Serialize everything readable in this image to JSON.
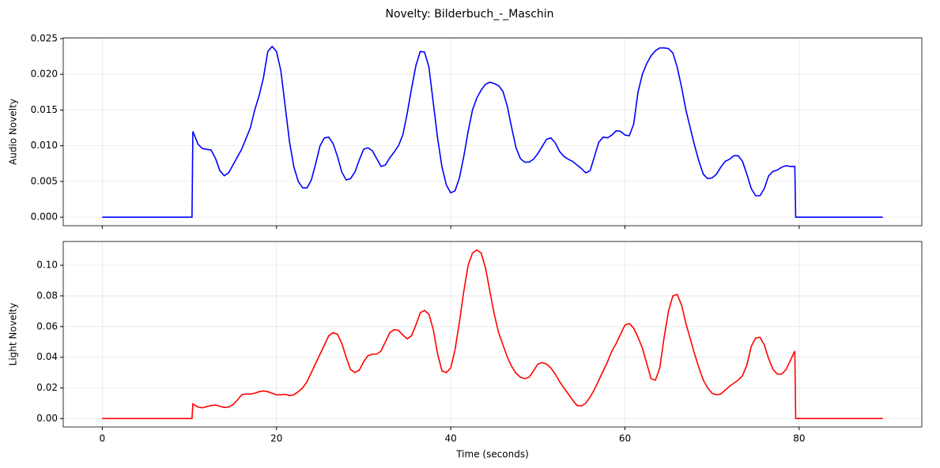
{
  "title": "Novelty: Bilderbuch_-_Maschin",
  "chart_data": [
    {
      "type": "line",
      "ylabel": "Audio Novelty",
      "color": "#0000ff",
      "grid": true,
      "xlim": [
        -4.48,
        94.08
      ],
      "ylim": [
        -0.0012,
        0.0251
      ],
      "xticks": [
        0,
        20,
        40,
        60,
        80
      ],
      "yticks": [
        {
          "value": 0,
          "label": "0.000"
        },
        {
          "value": 0.005,
          "label": "0.005"
        },
        {
          "value": 0.01,
          "label": "0.010"
        },
        {
          "value": 0.015,
          "label": "0.015"
        },
        {
          "value": 0.02,
          "label": "0.020"
        },
        {
          "value": 0.025,
          "label": "0.025"
        }
      ],
      "x": [
        0,
        10.3,
        10.4,
        11,
        11.5,
        12,
        12.5,
        13,
        13.5,
        14,
        14.5,
        15,
        15.5,
        16,
        16.5,
        17,
        17.5,
        18,
        18.5,
        19,
        19.5,
        20,
        20.5,
        21,
        21.5,
        22,
        22.5,
        23,
        23.5,
        24,
        24.5,
        25,
        25.5,
        26,
        26.5,
        27,
        27.5,
        28,
        28.5,
        29,
        29.5,
        30,
        30.5,
        31,
        31.5,
        32,
        32.5,
        33,
        33.5,
        34,
        34.5,
        35,
        35.5,
        36,
        36.5,
        37,
        37.5,
        38,
        38.5,
        39,
        39.5,
        40,
        40.5,
        41,
        41.5,
        42,
        42.5,
        43,
        43.5,
        44,
        44.5,
        45,
        45.5,
        46,
        46.5,
        47,
        47.5,
        48,
        48.5,
        49,
        49.5,
        50,
        50.5,
        51,
        51.5,
        52,
        52.5,
        53,
        53.5,
        54,
        54.5,
        55,
        55.5,
        56,
        56.5,
        57,
        57.5,
        58,
        58.5,
        59,
        59.5,
        60,
        60.5,
        61,
        61.5,
        62,
        62.5,
        63,
        63.5,
        64,
        64.5,
        65,
        65.5,
        66,
        66.5,
        67,
        67.5,
        68,
        68.5,
        69,
        69.5,
        70,
        70.5,
        71,
        71.5,
        72,
        72.5,
        73,
        73.5,
        74,
        74.5,
        75,
        75.5,
        76,
        76.5,
        77,
        77.5,
        78,
        78.5,
        79,
        79.5,
        79.6,
        89.6
      ],
      "values": [
        0,
        0,
        0.012,
        0.0102,
        0.0096,
        0.0095,
        0.0094,
        0.0082,
        0.0065,
        0.0058,
        0.0062,
        0.0073,
        0.0084,
        0.0095,
        0.011,
        0.0125,
        0.015,
        0.017,
        0.0195,
        0.0232,
        0.0239,
        0.0232,
        0.0205,
        0.0155,
        0.0105,
        0.007,
        0.005,
        0.0041,
        0.0041,
        0.0052,
        0.0075,
        0.01,
        0.0111,
        0.0112,
        0.0103,
        0.0085,
        0.0063,
        0.0052,
        0.0054,
        0.0063,
        0.008,
        0.0095,
        0.0097,
        0.0093,
        0.0082,
        0.0071,
        0.0073,
        0.0083,
        0.0091,
        0.01,
        0.0115,
        0.0145,
        0.018,
        0.0212,
        0.0232,
        0.0231,
        0.021,
        0.016,
        0.011,
        0.007,
        0.0045,
        0.0034,
        0.0037,
        0.0055,
        0.0085,
        0.012,
        0.015,
        0.0167,
        0.0178,
        0.0186,
        0.0189,
        0.0187,
        0.0184,
        0.0176,
        0.0155,
        0.0125,
        0.0097,
        0.0082,
        0.0077,
        0.0077,
        0.0081,
        0.0089,
        0.0099,
        0.0109,
        0.0111,
        0.0104,
        0.0092,
        0.0085,
        0.0081,
        0.0078,
        0.0073,
        0.0068,
        0.0062,
        0.0065,
        0.0085,
        0.0105,
        0.0112,
        0.0111,
        0.0115,
        0.0121,
        0.012,
        0.0115,
        0.0114,
        0.013,
        0.0175,
        0.02,
        0.0215,
        0.0226,
        0.0233,
        0.0237,
        0.0237,
        0.0236,
        0.023,
        0.021,
        0.0182,
        0.015,
        0.0125,
        0.01,
        0.0078,
        0.006,
        0.0054,
        0.0055,
        0.006,
        0.007,
        0.0078,
        0.0081,
        0.0086,
        0.0086,
        0.0078,
        0.006,
        0.004,
        0.003,
        0.003,
        0.004,
        0.0058,
        0.0064,
        0.0066,
        0.007,
        0.0072,
        0.0071,
        0.0071,
        0,
        0
      ]
    },
    {
      "type": "line",
      "ylabel": "Light Novelty",
      "xlabel": "Time (seconds)",
      "color": "#ff0000",
      "grid": true,
      "xlim": [
        -4.48,
        94.08
      ],
      "ylim": [
        -0.0055,
        0.1155
      ],
      "xticks": [
        0,
        20,
        40,
        60,
        80
      ],
      "yticks": [
        {
          "value": 0,
          "label": "0.00"
        },
        {
          "value": 0.02,
          "label": "0.02"
        },
        {
          "value": 0.04,
          "label": "0.04"
        },
        {
          "value": 0.06,
          "label": "0.06"
        },
        {
          "value": 0.08,
          "label": "0.08"
        },
        {
          "value": 0.1,
          "label": "0.10"
        }
      ],
      "x": [
        0,
        10.3,
        10.4,
        11,
        11.5,
        12,
        12.5,
        13,
        13.5,
        14,
        14.5,
        15,
        15.5,
        16,
        16.5,
        17,
        17.5,
        18,
        18.5,
        19,
        19.5,
        20,
        20.5,
        21,
        21.5,
        22,
        22.5,
        23,
        23.5,
        24,
        24.5,
        25,
        25.5,
        26,
        26.5,
        27,
        27.5,
        28,
        28.5,
        29,
        29.5,
        30,
        30.5,
        31,
        31.5,
        32,
        32.5,
        33,
        33.5,
        34,
        34.5,
        35,
        35.5,
        36,
        36.5,
        37,
        37.5,
        38,
        38.5,
        39,
        39.5,
        40,
        40.5,
        41,
        41.5,
        42,
        42.5,
        43,
        43.5,
        44,
        44.5,
        45,
        45.5,
        46,
        46.5,
        47,
        47.5,
        48,
        48.5,
        49,
        49.5,
        50,
        50.5,
        51,
        51.5,
        52,
        52.5,
        53,
        53.5,
        54,
        54.5,
        55,
        55.5,
        56,
        56.5,
        57,
        57.5,
        58,
        58.5,
        59,
        59.5,
        60,
        60.5,
        61,
        61.5,
        62,
        62.5,
        63,
        63.5,
        64,
        64.5,
        65,
        65.5,
        66,
        66.5,
        67,
        67.5,
        68,
        68.5,
        69,
        69.5,
        70,
        70.5,
        71,
        71.5,
        72,
        72.5,
        73,
        73.5,
        74,
        74.5,
        75,
        75.5,
        76,
        76.5,
        77,
        77.5,
        78,
        78.5,
        79,
        79.5,
        79.6,
        89.6
      ],
      "values": [
        0,
        0,
        0.0095,
        0.0075,
        0.007,
        0.0078,
        0.0085,
        0.0088,
        0.008,
        0.0072,
        0.0075,
        0.009,
        0.012,
        0.0155,
        0.016,
        0.016,
        0.0165,
        0.0175,
        0.018,
        0.0175,
        0.0165,
        0.0155,
        0.0155,
        0.0158,
        0.015,
        0.0155,
        0.0175,
        0.02,
        0.024,
        0.03,
        0.036,
        0.042,
        0.048,
        0.054,
        0.056,
        0.055,
        0.049,
        0.04,
        0.032,
        0.03,
        0.0315,
        0.037,
        0.041,
        0.042,
        0.042,
        0.044,
        0.05,
        0.056,
        0.058,
        0.0575,
        0.0545,
        0.052,
        0.054,
        0.061,
        0.069,
        0.0705,
        0.068,
        0.058,
        0.042,
        0.031,
        0.03,
        0.033,
        0.045,
        0.063,
        0.083,
        0.1,
        0.108,
        0.11,
        0.108,
        0.098,
        0.083,
        0.068,
        0.056,
        0.048,
        0.04,
        0.034,
        0.0295,
        0.027,
        0.026,
        0.027,
        0.031,
        0.0355,
        0.0365,
        0.0355,
        0.033,
        0.029,
        0.024,
        0.02,
        0.016,
        0.012,
        0.0085,
        0.0082,
        0.01,
        0.014,
        0.019,
        0.025,
        0.031,
        0.037,
        0.044,
        0.049,
        0.055,
        0.061,
        0.062,
        0.059,
        0.053,
        0.046,
        0.036,
        0.026,
        0.025,
        0.033,
        0.053,
        0.07,
        0.08,
        0.081,
        0.074,
        0.062,
        0.052,
        0.042,
        0.033,
        0.025,
        0.02,
        0.0165,
        0.0155,
        0.016,
        0.0185,
        0.021,
        0.023,
        0.025,
        0.028,
        0.035,
        0.047,
        0.0525,
        0.053,
        0.048,
        0.039,
        0.032,
        0.029,
        0.029,
        0.032,
        0.038,
        0.044,
        0,
        0
      ]
    }
  ]
}
